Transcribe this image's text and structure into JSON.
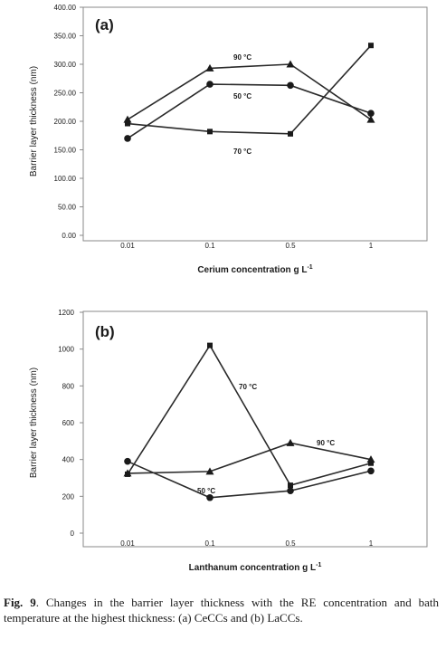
{
  "chart_data": [
    {
      "type": "line",
      "panel_label": "(a)",
      "ylabel": "Barrier layer  thickness  (nm)",
      "xlabel_main": "Cerium concentration g L",
      "xlabel_sup": "-1",
      "categories": [
        "0.01",
        "0.1",
        "0.5",
        "1"
      ],
      "yticks": [
        "0.00",
        "50.00",
        "100.00",
        "150.00",
        "200.00",
        "250.00",
        "300.00",
        "350.00",
        "400.00"
      ],
      "ylim": [
        0,
        400
      ],
      "series": [
        {
          "name": "90 °C",
          "marker": "triangle",
          "values": [
            203,
            293,
            300,
            203
          ]
        },
        {
          "name": "50 °C",
          "marker": "circle",
          "values": [
            170,
            265,
            263,
            214
          ]
        },
        {
          "name": "70 °C",
          "marker": "square",
          "values": [
            196,
            182,
            178,
            333
          ]
        }
      ]
    },
    {
      "type": "line",
      "panel_label": "(b)",
      "ylabel": "Barrier layer thickness (nm)",
      "xlabel_main": "Lanthanum concentration g L",
      "xlabel_sup": "-1",
      "categories": [
        "0.01",
        "0.1",
        "0.5",
        "1"
      ],
      "yticks": [
        "0",
        "200",
        "400",
        "600",
        "800",
        "1000",
        "1200"
      ],
      "ylim": [
        0,
        1200
      ],
      "series": [
        {
          "name": "70 °C",
          "marker": "square",
          "values": [
            320,
            1020,
            260,
            380
          ]
        },
        {
          "name": "90 °C",
          "marker": "triangle",
          "values": [
            325,
            335,
            490,
            400
          ]
        },
        {
          "name": "50 °C",
          "marker": "circle",
          "values": [
            390,
            193,
            230,
            338
          ]
        }
      ]
    }
  ],
  "caption": {
    "label": "Fig. 9",
    "text": ". Changes in the barrier layer thickness with the RE concentration and bath temperature at the highest thickness: (a) CeCCs and (b) LaCCs."
  }
}
